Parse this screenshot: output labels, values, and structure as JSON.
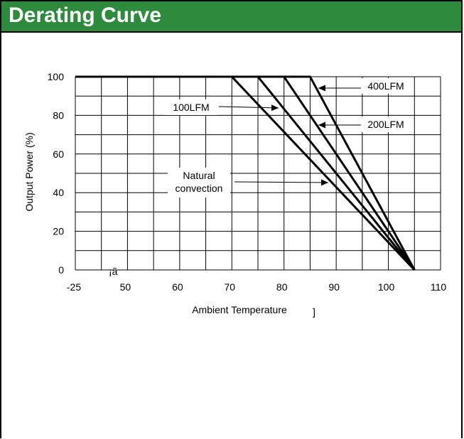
{
  "page": {
    "title": "Derating Curve"
  },
  "chart_data": {
    "type": "line",
    "title": "",
    "xlabel": "Ambient Temperature",
    "xlabel_suffix": "]",
    "ylabel": "Output Power  (%)",
    "x_tick_labels": [
      "-25",
      "50",
      "60",
      "70",
      "80",
      "90",
      "100",
      "110"
    ],
    "x_stray_label": "¡ã",
    "y_ticks": [
      0,
      20,
      40,
      60,
      80,
      100
    ],
    "xlim": [
      40,
      110
    ],
    "ylim": [
      0,
      100
    ],
    "series": [
      {
        "name": "Natural convection",
        "x": [
          40,
          70,
          105
        ],
        "y": [
          100,
          100,
          0
        ]
      },
      {
        "name": "100LFM",
        "x": [
          40,
          75,
          105
        ],
        "y": [
          100,
          100,
          0
        ]
      },
      {
        "name": "200LFM",
        "x": [
          40,
          80,
          105
        ],
        "y": [
          100,
          100,
          0
        ]
      },
      {
        "name": "400LFM",
        "x": [
          40,
          85,
          105
        ],
        "y": [
          100,
          100,
          0
        ]
      }
    ],
    "annotations": [
      {
        "lines": [
          "400LFM"
        ]
      },
      {
        "lines": [
          "100LFM"
        ]
      },
      {
        "lines": [
          "200LFM"
        ]
      },
      {
        "lines": [
          "Natural",
          "convection"
        ]
      }
    ],
    "grid": true,
    "colors": {
      "line": "#000000",
      "header": "#2e8b3e"
    }
  }
}
